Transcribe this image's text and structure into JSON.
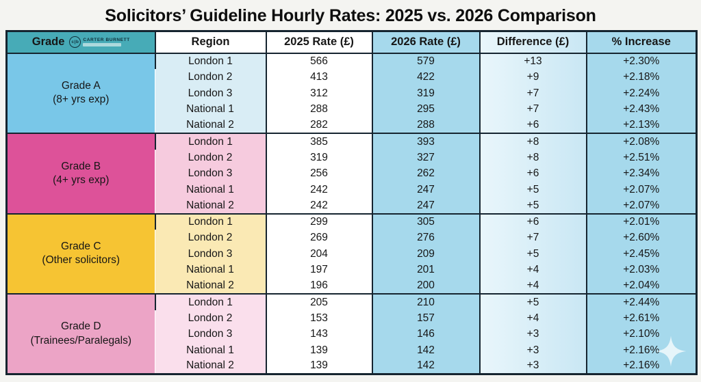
{
  "page": {
    "title": "Solicitors’ Guideline Hourly Rates: 2025 vs. 2026 Comparison"
  },
  "logo": {
    "monogram": "c|b",
    "name": "CARTER BURNETT"
  },
  "icons": {
    "sparkle": "sparkle-icon"
  },
  "colors": {
    "page_bg": "#f4f4f1",
    "text_dark": "#161616",
    "border_dark": "#15242f",
    "header_teal": "#47abb7",
    "col_2025_bg": "#ffffff",
    "col_2026_bg": "#a6d9ec",
    "col_diff_from": "#e9f6fb",
    "col_diff_to": "#c9e7f4",
    "col_pct_bg": "#a6d9ec",
    "logo_navy": "#10303b",
    "logo_bar": "#bfe0e4"
  },
  "chart_data": {
    "type": "table",
    "title": "Solicitors’ Guideline Hourly Rates: 2025 vs. 2026 Comparison",
    "columns": [
      "Grade",
      "Region",
      "2025 Rate (£)",
      "2026 Rate (£)",
      "Difference (£)",
      "% Increase"
    ],
    "groups": [
      {
        "grade": "Grade A",
        "note": "(8+ yrs exp)",
        "color": "#79c7e8",
        "region_color": "#d9edf5",
        "rows": [
          {
            "region": "London 1",
            "rate_2025": 566,
            "rate_2026": 579,
            "difference": "+13",
            "pct_increase": "+2.30%"
          },
          {
            "region": "London 2",
            "rate_2025": 413,
            "rate_2026": 422,
            "difference": "+9",
            "pct_increase": "+2.18%"
          },
          {
            "region": "London 3",
            "rate_2025": 312,
            "rate_2026": 319,
            "difference": "+7",
            "pct_increase": "+2.24%"
          },
          {
            "region": "National 1",
            "rate_2025": 288,
            "rate_2026": 295,
            "difference": "+7",
            "pct_increase": "+2.43%"
          },
          {
            "region": "National 2",
            "rate_2025": 282,
            "rate_2026": 288,
            "difference": "+6",
            "pct_increase": "+2.13%"
          }
        ]
      },
      {
        "grade": "Grade B",
        "note": "(4+ yrs exp)",
        "color": "#dd5299",
        "region_color": "#f6cbde",
        "rows": [
          {
            "region": "London 1",
            "rate_2025": 385,
            "rate_2026": 393,
            "difference": "+8",
            "pct_increase": "+2.08%"
          },
          {
            "region": "London 2",
            "rate_2025": 319,
            "rate_2026": 327,
            "difference": "+8",
            "pct_increase": "+2.51%"
          },
          {
            "region": "London 3",
            "rate_2025": 256,
            "rate_2026": 262,
            "difference": "+6",
            "pct_increase": "+2.34%"
          },
          {
            "region": "National 1",
            "rate_2025": 242,
            "rate_2026": 247,
            "difference": "+5",
            "pct_increase": "+2.07%"
          },
          {
            "region": "National 2",
            "rate_2025": 242,
            "rate_2026": 247,
            "difference": "+5",
            "pct_increase": "+2.07%"
          }
        ]
      },
      {
        "grade": "Grade C",
        "note": "(Other solicitors)",
        "color": "#f6c433",
        "region_color": "#fae9b4",
        "rows": [
          {
            "region": "London 1",
            "rate_2025": 299,
            "rate_2026": 305,
            "difference": "+6",
            "pct_increase": "+2.01%"
          },
          {
            "region": "London 2",
            "rate_2025": 269,
            "rate_2026": 276,
            "difference": "+7",
            "pct_increase": "+2.60%"
          },
          {
            "region": "London 3",
            "rate_2025": 204,
            "rate_2026": 209,
            "difference": "+5",
            "pct_increase": "+2.45%"
          },
          {
            "region": "National 1",
            "rate_2025": 197,
            "rate_2026": 201,
            "difference": "+4",
            "pct_increase": "+2.03%"
          },
          {
            "region": "National 2",
            "rate_2025": 196,
            "rate_2026": 200,
            "difference": "+4",
            "pct_increase": "+2.04%"
          }
        ]
      },
      {
        "grade": "Grade D",
        "note": "(Trainees/Paralegals)",
        "color": "#eca4c6",
        "region_color": "#fadfec",
        "rows": [
          {
            "region": "London 1",
            "rate_2025": 205,
            "rate_2026": 210,
            "difference": "+5",
            "pct_increase": "+2.44%"
          },
          {
            "region": "London 2",
            "rate_2025": 153,
            "rate_2026": 157,
            "difference": "+4",
            "pct_increase": "+2.61%"
          },
          {
            "region": "London 3",
            "rate_2025": 143,
            "rate_2026": 146,
            "difference": "+3",
            "pct_increase": "+2.10%"
          },
          {
            "region": "National 1",
            "rate_2025": 139,
            "rate_2026": 142,
            "difference": "+3",
            "pct_increase": "+2.16%"
          },
          {
            "region": "National 2",
            "rate_2025": 139,
            "rate_2026": 142,
            "difference": "+3",
            "pct_increase": "+2.16%"
          }
        ]
      }
    ]
  }
}
